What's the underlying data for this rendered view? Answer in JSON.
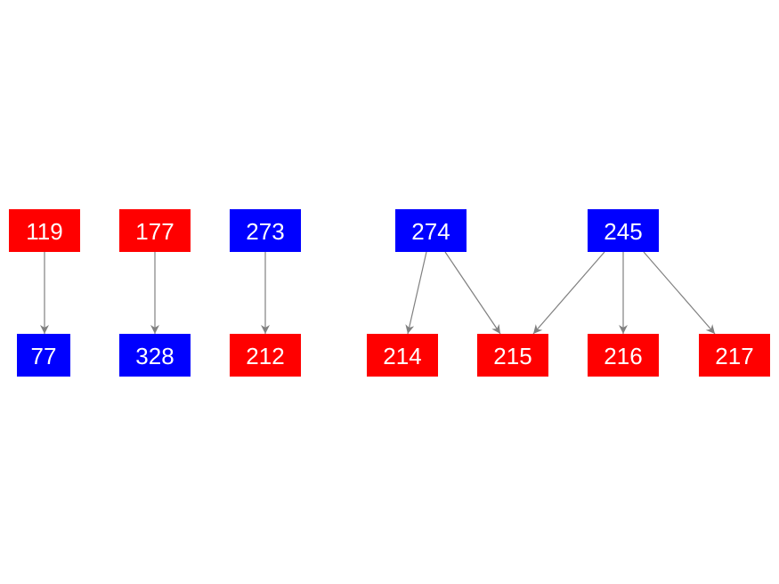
{
  "colors": {
    "red": "#ff0000",
    "blue": "#0000ff",
    "edge": "#808080",
    "text": "#ffffff"
  },
  "nodes": [
    {
      "id": "119",
      "label": "119",
      "color": "red"
    },
    {
      "id": "177",
      "label": "177",
      "color": "red"
    },
    {
      "id": "273",
      "label": "273",
      "color": "blue"
    },
    {
      "id": "274",
      "label": "274",
      "color": "blue"
    },
    {
      "id": "245",
      "label": "245",
      "color": "blue"
    },
    {
      "id": "77",
      "label": "77",
      "color": "blue"
    },
    {
      "id": "328",
      "label": "328",
      "color": "blue"
    },
    {
      "id": "212",
      "label": "212",
      "color": "red"
    },
    {
      "id": "214",
      "label": "214",
      "color": "red"
    },
    {
      "id": "215",
      "label": "215",
      "color": "red"
    },
    {
      "id": "216",
      "label": "216",
      "color": "red"
    },
    {
      "id": "217",
      "label": "217",
      "color": "red"
    }
  ],
  "edges": [
    {
      "from": "119",
      "to": "77"
    },
    {
      "from": "177",
      "to": "328"
    },
    {
      "from": "273",
      "to": "212"
    },
    {
      "from": "274",
      "to": "214"
    },
    {
      "from": "274",
      "to": "215"
    },
    {
      "from": "245",
      "to": "215"
    },
    {
      "from": "245",
      "to": "216"
    },
    {
      "from": "245",
      "to": "217"
    }
  ]
}
